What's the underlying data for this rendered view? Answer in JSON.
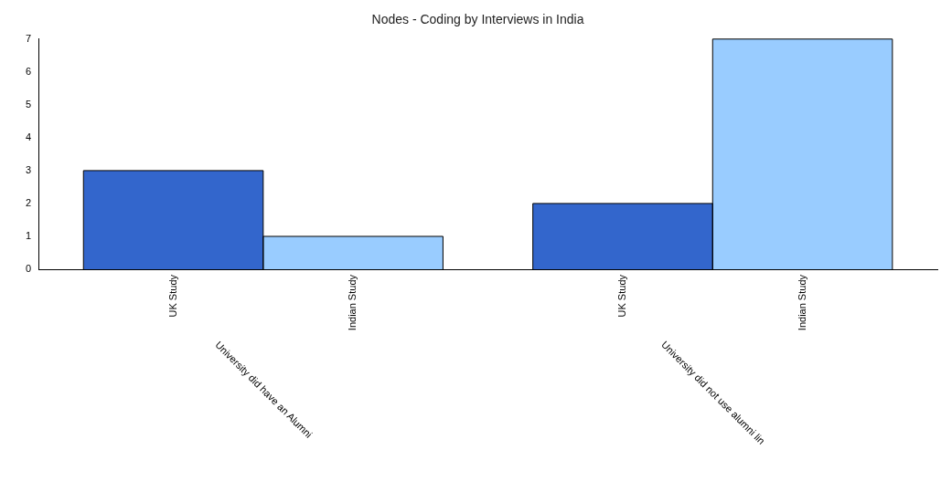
{
  "chart_data": {
    "type": "bar",
    "title": "Nodes - Coding by Interviews in India",
    "categories": [
      "University did have an Alumni",
      "University did not use alumni lin"
    ],
    "series": [
      {
        "name": "UK Study",
        "color": "#3366cc",
        "values": [
          3,
          2
        ]
      },
      {
        "name": "Indian Study",
        "color": "#99ccff",
        "values": [
          1,
          7
        ]
      }
    ],
    "ylim": [
      0,
      7
    ],
    "yticks": [
      0,
      1,
      2,
      3,
      4,
      5,
      6,
      7
    ],
    "grid": false,
    "legend": false
  }
}
